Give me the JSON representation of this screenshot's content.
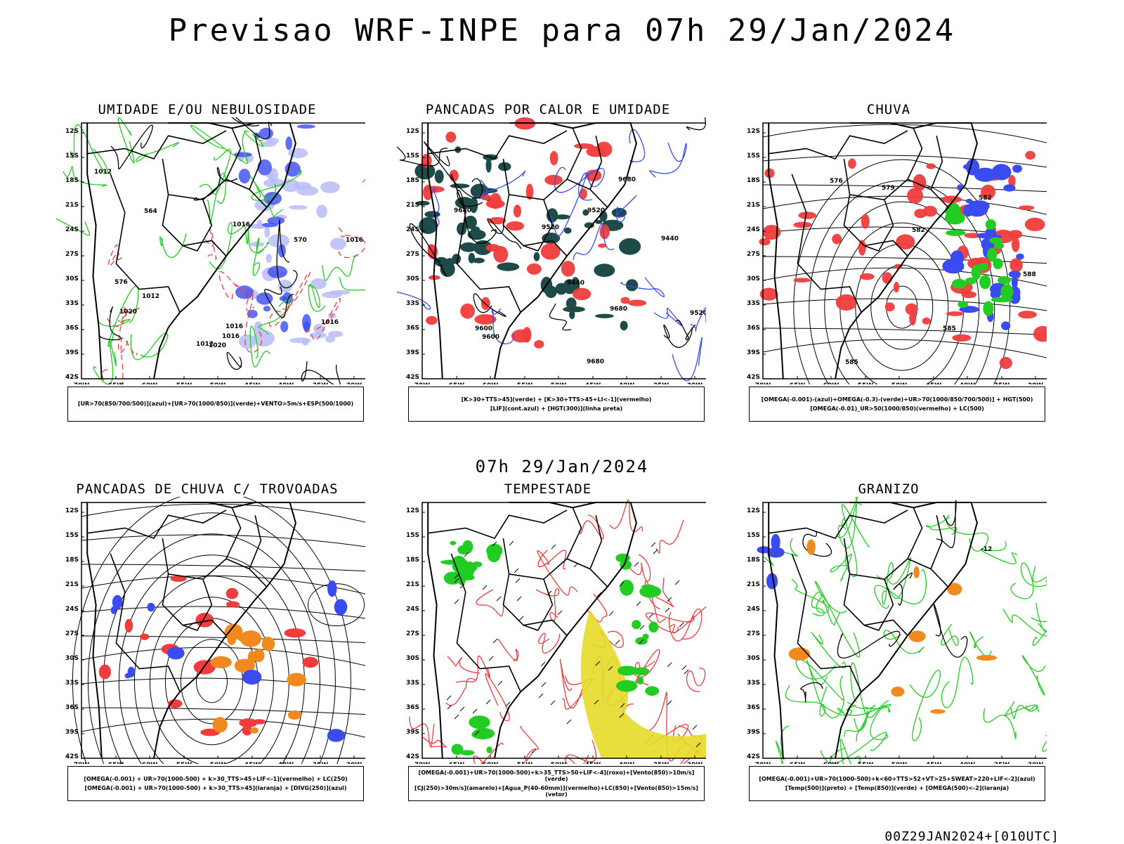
{
  "header": {
    "title": "Previsao WRF-INPE  para 07h 29/Jan/2024",
    "mid_date": "07h 29/Jan/2024",
    "stamp": "00Z29JAN2024+[010UTC]"
  },
  "axes": {
    "lon_labels": [
      "70W",
      "65W",
      "60W",
      "55W",
      "50W",
      "45W",
      "40W",
      "35W",
      "30W"
    ],
    "lat_labels": [
      "12S",
      "15S",
      "18S",
      "21S",
      "24S",
      "27S",
      "30S",
      "33S",
      "36S",
      "39S",
      "42S"
    ]
  },
  "colors": {
    "blue": "#3a4cf0",
    "lightblue": "#b7bdf4",
    "green": "#22cc22",
    "red": "#f03c3c",
    "darkteal": "#1e4a48",
    "orange": "#f08a1e",
    "yellow": "#e6dc2a",
    "purple": "#8a2be2"
  },
  "panels": [
    {
      "id": "umidade",
      "title": "UMIDADE E/OU NEBULOSIDADE",
      "legend": [
        "[UR>70(850/700/500)](azul)+[UR>70(1000/850)](verde)+VENTO>5m/s+ESP(500/1000)"
      ],
      "contour_labels": [
        "1012",
        "1016",
        "1016",
        "1012",
        "1016",
        "1020",
        "1016",
        "576",
        "570",
        "564",
        "1012",
        "1016",
        "1020"
      ]
    },
    {
      "id": "pancadas",
      "title": "PANCADAS POR CALOR E UMIDADE",
      "legend": [
        "[K>30+TTS>45](verde) + [K>30+TTS>45+LI<-1](vermelho)",
        "[LIF](cont.azul) + [HGT(300)](linha preta)"
      ],
      "contour_labels": [
        "9680",
        "9680",
        "9600",
        "9680",
        "9520",
        "9600",
        "9440",
        "9520",
        "9440",
        "9520",
        "9680"
      ]
    },
    {
      "id": "chuva",
      "title": "CHUVA",
      "legend": [
        "[OMEGA(-0.001)-(azul)+OMEGA(-0.3)-(verde)+UR>70(1000/850/700/500)] + HGT(500)",
        "[OMEGA(-0.01)_UR>50(1000/850)(vermelho) + LC(500)"
      ],
      "contour_labels": [
        "588",
        "585",
        "582",
        "579",
        "576",
        "585",
        "582"
      ]
    },
    {
      "id": "trovoadas",
      "title": "PANCADAS DE CHUVA C/ TROVOADAS",
      "legend": [
        "[OMEGA(-0.001) + UR>70(1000-500) + k>30_TTS>45+LIF<-1](vermelho) + LC(250)",
        "[OMEGA(-0.001) + UR>70(1000-500) + k>30_TTS>45](laranja) + [DIVG(250)](azul)"
      ],
      "contour_labels": []
    },
    {
      "id": "tempestade",
      "title": "TEMPESTADE",
      "legend": [
        "[OMEGA(-0.001)+UR>70(1000-500)+k>35_TTS>50+LIF<-4](roxo)+[Vento(850)>10m/s](verde)",
        "[CJ(250)>30m/s](amarelo)+[Agua_P(40-60mm)](vermelho)+LC(850)+[Vento(850)>15m/s](vetor)"
      ],
      "contour_labels": []
    },
    {
      "id": "granizo",
      "title": "GRANIZO",
      "legend": [
        "[OMEGA(-0.001)+UR>70(1000-500)+k<60+TTS>52+VT>25+SWEAT>220+LIF<-2](azul)",
        "[Temp(500)](preto) + [Temp(850)](verde) + [OMEGA(500)<-2](laranja)"
      ],
      "contour_labels": [
        "-12"
      ]
    }
  ]
}
